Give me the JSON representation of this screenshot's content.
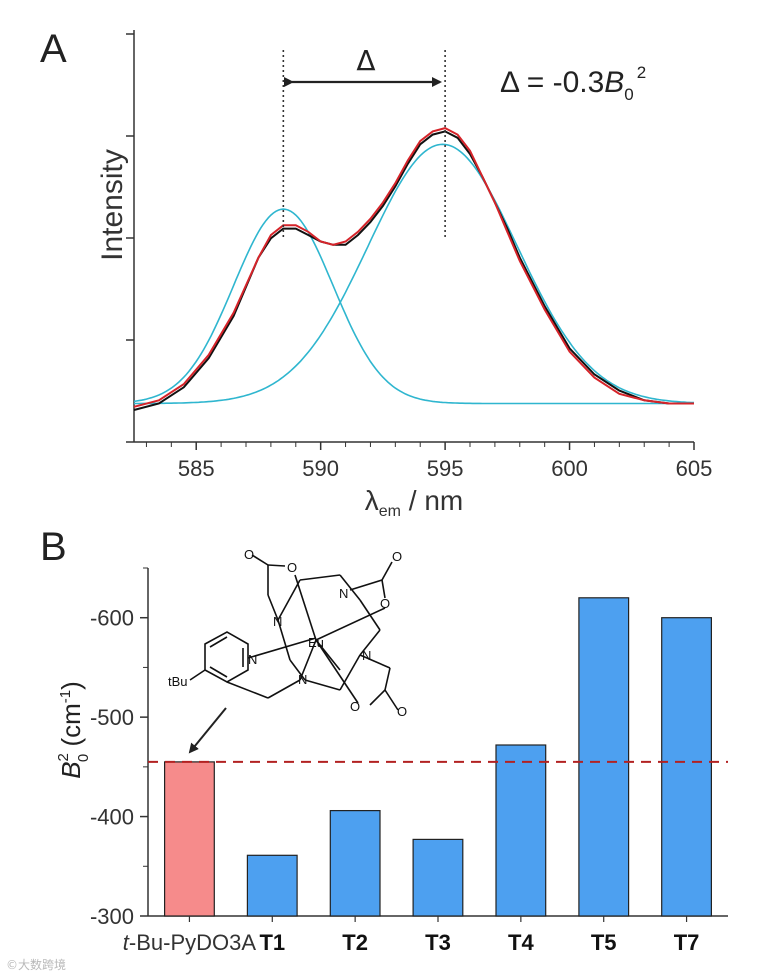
{
  "panel_a_label": "A",
  "panel_b_label": "B",
  "watermark": "©大数跨境",
  "chart_data": [
    {
      "type": "line",
      "title": "",
      "xlabel": "λem / nm",
      "xlabel_main": "λ",
      "xlabel_sub": "em",
      "xlabel_unit": " / nm",
      "ylabel": "Intensity",
      "xlim": [
        582.5,
        605
      ],
      "ylim": [
        0,
        1.05
      ],
      "x_ticks": [
        585,
        590,
        595,
        600,
        605
      ],
      "x_tick_labels": [
        "585",
        "590",
        "595",
        "600",
        "605"
      ],
      "delta_symbol": "Δ",
      "annotation": {
        "prefix": "Δ = -0.3",
        "var": "B",
        "sub": "0",
        "sup": "2"
      },
      "markers": [
        588.5,
        595
      ],
      "peaks": [
        {
          "name": "fit-peak-1",
          "center": 588.5,
          "height": 0.6,
          "width": 2.0,
          "baseline": 0.02
        },
        {
          "name": "fit-peak-2",
          "center": 594.9,
          "height": 0.8,
          "width": 3.0,
          "baseline": 0.02
        }
      ],
      "series": [
        {
          "name": "experimental",
          "color": "#111111",
          "x": [
            582.5,
            583.5,
            584.5,
            585.5,
            586.5,
            587.5,
            588.0,
            588.5,
            589.0,
            589.5,
            590.0,
            590.5,
            591.0,
            591.5,
            592.0,
            592.5,
            593.0,
            593.5,
            594.0,
            594.5,
            595.0,
            595.5,
            596.0,
            596.5,
            597.0,
            597.5,
            598.0,
            599.0,
            600.0,
            601.0,
            602.0,
            603.0,
            604.0,
            605.0
          ],
          "y": [
            0.0,
            0.02,
            0.07,
            0.16,
            0.29,
            0.47,
            0.53,
            0.56,
            0.56,
            0.54,
            0.52,
            0.51,
            0.51,
            0.54,
            0.58,
            0.63,
            0.69,
            0.76,
            0.82,
            0.85,
            0.86,
            0.84,
            0.79,
            0.72,
            0.64,
            0.56,
            0.47,
            0.32,
            0.19,
            0.11,
            0.06,
            0.03,
            0.02,
            0.02
          ]
        },
        {
          "name": "fit-sum",
          "color": "#d6242a",
          "x": [
            582.5,
            583.5,
            584.5,
            585.5,
            586.5,
            587.5,
            588.0,
            588.5,
            589.0,
            589.5,
            590.0,
            590.5,
            591.0,
            591.5,
            592.0,
            592.5,
            593.0,
            593.5,
            594.0,
            594.5,
            595.0,
            595.5,
            596.0,
            596.5,
            597.0,
            597.5,
            598.0,
            599.0,
            600.0,
            601.0,
            602.0,
            603.0,
            604.0,
            605.0
          ],
          "y": [
            0.01,
            0.03,
            0.08,
            0.17,
            0.3,
            0.47,
            0.54,
            0.57,
            0.57,
            0.55,
            0.52,
            0.51,
            0.52,
            0.55,
            0.59,
            0.64,
            0.7,
            0.77,
            0.83,
            0.86,
            0.87,
            0.85,
            0.8,
            0.72,
            0.64,
            0.55,
            0.46,
            0.31,
            0.18,
            0.1,
            0.05,
            0.03,
            0.02,
            0.02
          ]
        }
      ]
    },
    {
      "type": "bar",
      "title": "",
      "xlabel": "",
      "ylabel": "B02 (cm-1)",
      "ylabel_var": "B",
      "ylabel_sup": "2",
      "ylabel_sub": "0",
      "ylabel_unit_open": " (cm",
      "ylabel_unit_sup": "-1",
      "ylabel_unit_close": ")",
      "ylim": [
        -300,
        -650
      ],
      "y_ticks": [
        -300,
        -400,
        -500,
        -600
      ],
      "y_tick_labels": [
        "-300",
        "-400",
        "-500",
        "-600"
      ],
      "categories": [
        "t-Bu-PyDO3A",
        "T1",
        "T2",
        "T3",
        "T4",
        "T5",
        "T7"
      ],
      "category_labels": [
        {
          "italic": "t",
          "rest": "-Bu-PyDO3A",
          "bold": false
        },
        {
          "italic": "",
          "rest": "T1",
          "bold": true
        },
        {
          "italic": "",
          "rest": "T2",
          "bold": true
        },
        {
          "italic": "",
          "rest": "T3",
          "bold": true
        },
        {
          "italic": "",
          "rest": "T4",
          "bold": true
        },
        {
          "italic": "",
          "rest": "T5",
          "bold": true
        },
        {
          "italic": "",
          "rest": "T7",
          "bold": true
        }
      ],
      "values": [
        -455,
        -361,
        -406,
        -377,
        -472,
        -620,
        -600
      ],
      "bar_colors": [
        "#f68b8b",
        "#4da0f0",
        "#4da0f0",
        "#4da0f0",
        "#4da0f0",
        "#4da0f0",
        "#4da0f0"
      ],
      "reference_line": -455,
      "reference_color": "#b22222",
      "structure_labels": {
        "metal": "Eu",
        "tbu": "tBu",
        "n": "N",
        "o": "O"
      }
    }
  ]
}
